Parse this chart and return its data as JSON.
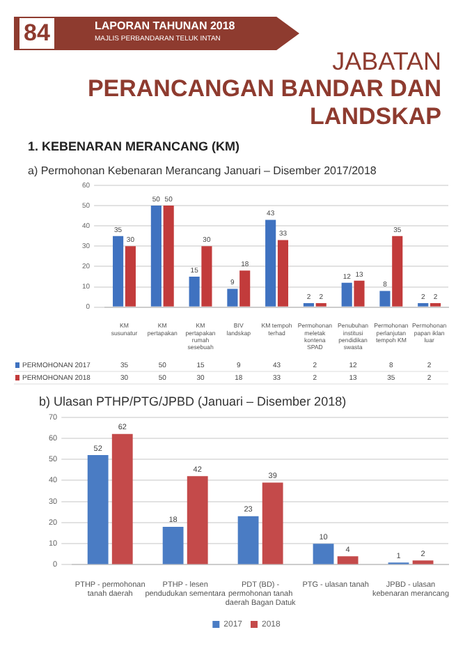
{
  "chart_data": [
    {
      "type": "bar",
      "title": "a) Permohonan Kebenaran Merancang Januari – Disember 2017/2018",
      "annotations": [
        "84",
        "LAPORAN TAHUNAN 2018",
        "MAJLIS PERBANDARAN TELUK INTAN",
        "JABATAN",
        "PERANCANGAN BANDAR DAN LANDSKAP",
        "1. KEBENARAN MERANCANG (KM)",
        {
          "text": "35",
          "x": "KM susunatur",
          "y": 35
        },
        {
          "text": "30",
          "x": "KM susunatur",
          "y": 30
        },
        {
          "text": "50",
          "x": "KM pertapakan",
          "y": 50
        },
        {
          "text": "50",
          "x": "KM pertapakan",
          "y": 50
        },
        {
          "text": "15",
          "x": "KM pertapakan rumah sesebuah",
          "y": 15
        },
        {
          "text": "30",
          "x": "KM pertapakan rumah sesebuah",
          "y": 30
        },
        {
          "text": "9",
          "x": "BIV landskap",
          "y": 9
        },
        {
          "text": "18",
          "x": "BIV landskap",
          "y": 18
        },
        {
          "text": "43",
          "x": "KM tempoh terhad",
          "y": 43
        },
        {
          "text": "33",
          "x": "KM tempoh terhad",
          "y": 33
        },
        {
          "text": "2",
          "x": "Permohonan meletak kontena SPAD",
          "y": 2
        },
        {
          "text": "2",
          "x": "Permohonan meletak kontena SPAD",
          "y": 2
        },
        {
          "text": "12",
          "x": "Penubuhan institusi pendidikan swasta",
          "y": 12
        },
        {
          "text": "13",
          "x": "Penubuhan institusi pendidikan swasta",
          "y": 13
        },
        {
          "text": "8",
          "x": "Permohonan perlanjutan tempoh KM",
          "y": 8
        },
        {
          "text": "35",
          "x": "Permohonan perlanjutan tempoh KM",
          "y": 35
        },
        {
          "text": "2",
          "x": "Permohonan papan iklan luar",
          "y": 2
        },
        {
          "text": "2",
          "x": "Permohonan papan iklan luar",
          "y": 2
        }
      ],
      "categories": [
        "KM susunatur",
        "KM pertapakan",
        "KM pertapakan rumah sesebuah",
        "BIV landskap",
        "KM tempoh terhad",
        "Permohonan meletak kontena SPAD",
        "Penubuhan institusi pendidikan swasta",
        "Permohonan perlanjutan tempoh KM",
        "Permohonan papan iklan luar"
      ],
      "series": [
        {
          "name": "PERMOHONAN 2017",
          "color": "#3f72c0",
          "values": [
            35,
            50,
            15,
            9,
            43,
            2,
            12,
            8,
            2
          ]
        },
        {
          "name": "PERMOHONAN 2018",
          "color": "#c23b3b",
          "values": [
            30,
            50,
            30,
            18,
            33,
            2,
            13,
            35,
            2
          ]
        }
      ],
      "ylim": [
        0,
        60
      ],
      "yticks": [
        0,
        10,
        20,
        30,
        40,
        50,
        60
      ],
      "grid": "y",
      "legend": "bottom left",
      "data_labels": true
    },
    {
      "type": "bar",
      "title": "b) Ulasan PTHP/PTG/JPBD (Januari – Disember 2018)",
      "categories": [
        "PTHP - permohonan tanah daerah",
        "PTHP - lesen pendudukan sementara",
        "PDT (BD) - permohonan tanah daerah Bagan Datuk",
        "PTG - ulasan tanah",
        "JPBD - ulasan kebenaran merancang"
      ],
      "series": [
        {
          "name": "2017",
          "color": "#4a7cc4",
          "values": [
            52,
            18,
            23,
            10,
            1
          ]
        },
        {
          "name": "2018",
          "color": "#c44a4a",
          "values": [
            62,
            42,
            39,
            4,
            2
          ]
        }
      ],
      "ylim": [
        0,
        70
      ],
      "yticks": [
        0,
        10,
        20,
        30,
        40,
        50,
        60,
        70
      ],
      "grid": "y",
      "legend": "bottom",
      "data_labels": true
    }
  ]
}
